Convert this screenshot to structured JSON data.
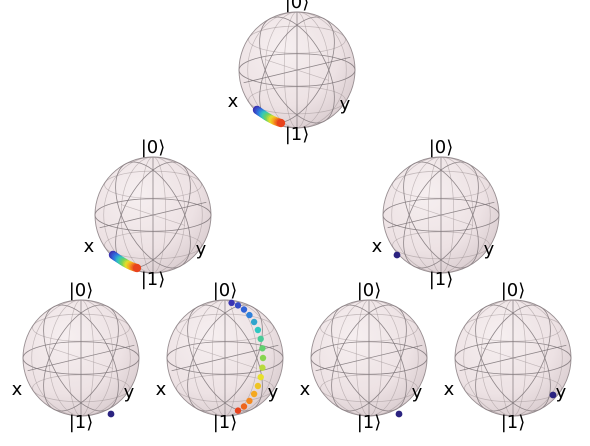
{
  "labels": {
    "top": "|0⟩",
    "bottom": "|1⟩",
    "x": "x",
    "y": "y"
  },
  "colors": {
    "sphere_fill": "#f1e8ea",
    "sphere_shade": "#d9cdd0",
    "wire": "#7d7478",
    "dot_dark": "#2b2380",
    "gradient": [
      "#e8431d",
      "#f79a1e",
      "#e8e02a",
      "#6fd25a",
      "#2fc7c1",
      "#2f6fe0",
      "#3a34b4"
    ]
  },
  "spheres": [
    {
      "id": "tree-root",
      "points": "gradient-arc-bottom-left"
    },
    {
      "id": "tree-left",
      "points": "gradient-arc-bottom-left"
    },
    {
      "id": "tree-right",
      "points": "single-dot-left"
    },
    {
      "id": "leaf-1",
      "points": "single-dot-bottom-right"
    },
    {
      "id": "leaf-2",
      "points": "dotted-meridian-gradient"
    },
    {
      "id": "leaf-3",
      "points": "single-dot-bottom-right"
    },
    {
      "id": "leaf-4",
      "points": "single-dot-right"
    }
  ]
}
